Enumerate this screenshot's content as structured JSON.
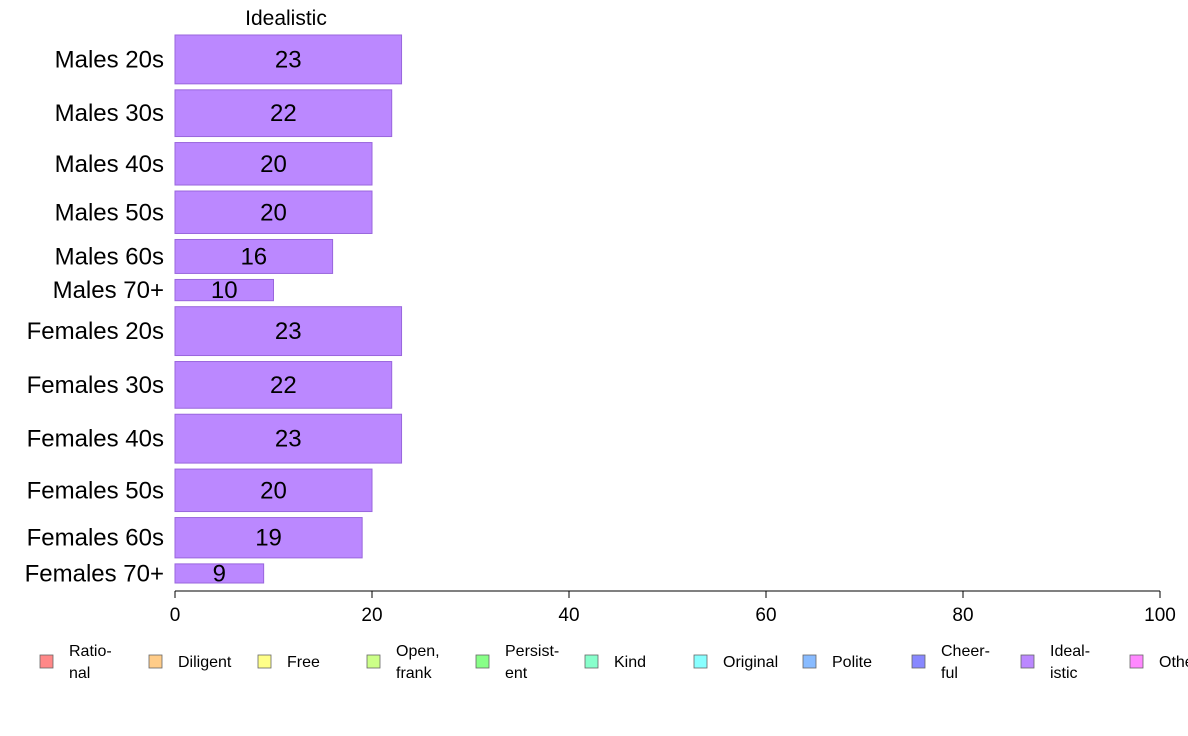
{
  "chart_data": {
    "type": "bar",
    "orientation": "horizontal",
    "title": "Idealistic",
    "xlabel": "",
    "ylabel": "",
    "xlim": [
      0,
      100
    ],
    "ticks": [
      "0",
      "20",
      "40",
      "60",
      "80",
      "100"
    ],
    "grid": false,
    "bar_color": "#bb88ff",
    "bar_border_color": "#9966dd",
    "categories": [
      "Males 20s",
      "Males 30s",
      "Males 40s",
      "Males 50s",
      "Males 60s",
      "Males 70+",
      "Females 20s",
      "Females 30s",
      "Females 40s",
      "Females 50s",
      "Females 60s",
      "Females 70+"
    ],
    "values": [
      23,
      22,
      20,
      20,
      16,
      10,
      23,
      22,
      23,
      20,
      19,
      9
    ],
    "value_labels": [
      "23",
      "22",
      "20",
      "20",
      "16",
      "10",
      "23",
      "22",
      "23",
      "20",
      "19",
      "9"
    ],
    "legend_placement": "bottom",
    "legend": [
      {
        "lines": [
          "Ratio-",
          "nal"
        ],
        "color": "#ff8888"
      },
      {
        "lines": [
          "Diligent"
        ],
        "color": "#ffcc88"
      },
      {
        "lines": [
          "Free"
        ],
        "color": "#ffff88"
      },
      {
        "lines": [
          "Open,",
          "frank"
        ],
        "color": "#ccff88"
      },
      {
        "lines": [
          "Persist-",
          "ent"
        ],
        "color": "#88ff88"
      },
      {
        "lines": [
          "Kind"
        ],
        "color": "#88ffcc"
      },
      {
        "lines": [
          "Original"
        ],
        "color": "#88ffff"
      },
      {
        "lines": [
          "Polite"
        ],
        "color": "#88bbff"
      },
      {
        "lines": [
          "Cheer-",
          "ful"
        ],
        "color": "#8888ff"
      },
      {
        "lines": [
          "Ideal-",
          "istic"
        ],
        "color": "#bb88ff"
      },
      {
        "lines": [
          "Other"
        ],
        "color": "#ff88ff"
      }
    ]
  }
}
